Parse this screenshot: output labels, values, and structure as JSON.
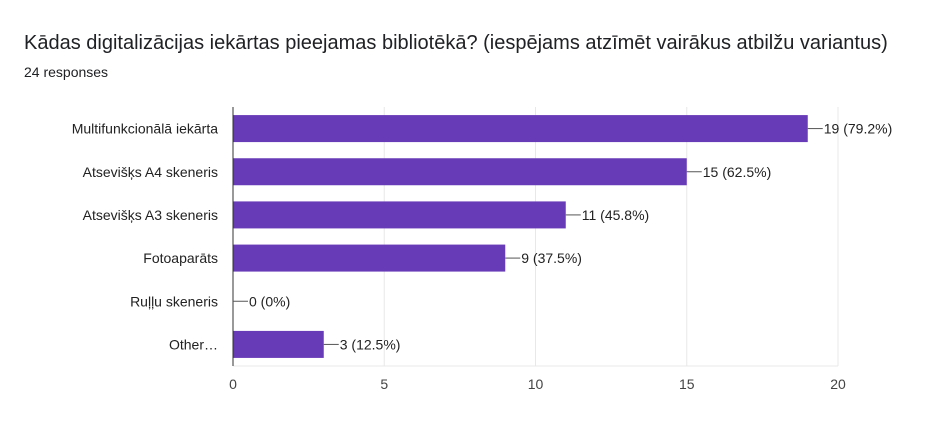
{
  "header": {
    "title": "Kādas digitalizācijas iekārtas pieejamas bibliotēkā? (iespējams atzīmēt vairākus atbilžu variantus)",
    "responses": "24 responses"
  },
  "colors": {
    "bar": "#673ab7",
    "grid": "#e8e8e8",
    "axis": "#333333"
  },
  "chart_data": {
    "type": "bar",
    "orientation": "horizontal",
    "categories": [
      "Multifunkcionālā iekārta",
      "Atsevišķs A4 skeneris",
      "Atsevišķs A3 skeneris",
      "Fotoaparāts",
      "Ruļļu skeneris",
      "Other…"
    ],
    "values": [
      19,
      15,
      11,
      9,
      0,
      3
    ],
    "data_labels": [
      "19 (79.2%)",
      "15 (62.5%)",
      "11 (45.8%)",
      "9 (37.5%)",
      "0 (0%)",
      "3 (12.5%)"
    ],
    "xlim": [
      0,
      20
    ],
    "xticks": [
      0,
      5,
      10,
      15,
      20
    ],
    "grid": true,
    "title": "Kādas digitalizācijas iekārtas pieejamas bibliotēkā? (iespējams atzīmēt vairākus atbilžu variantus)",
    "xlabel": "",
    "ylabel": ""
  }
}
